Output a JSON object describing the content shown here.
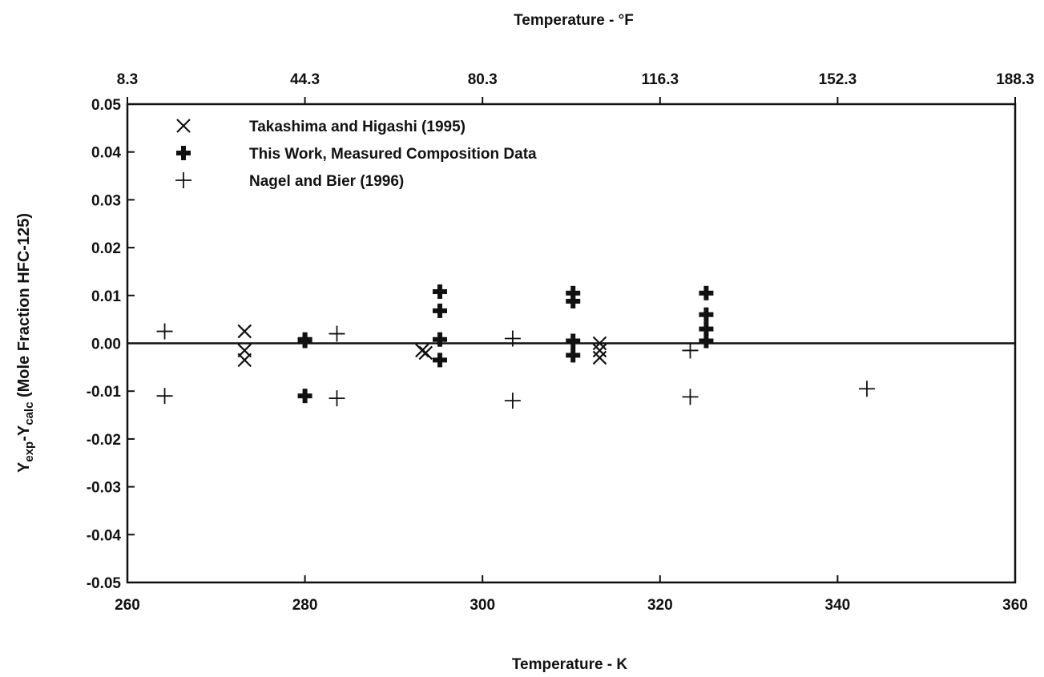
{
  "chart_data": {
    "type": "scatter",
    "title": "",
    "xlabel": "Temperature - K",
    "x2label": "Temperature - °F",
    "ylabel": {
      "prefix1": "Y",
      "sub1": "exp",
      "mid": "-Y",
      "sub2": "calc",
      "suffix": " (Mole Fraction HFC-125)"
    },
    "xlim": [
      260,
      360
    ],
    "ylim": [
      -0.05,
      0.05
    ],
    "xticks": [
      "260",
      "280",
      "300",
      "320",
      "340",
      "360"
    ],
    "yticks": [
      "0.05",
      "0.04",
      "0.03",
      "0.02",
      "0.01",
      "0.00",
      "-0.01",
      "-0.02",
      "-0.03",
      "-0.04",
      "-0.05"
    ],
    "x2ticks": [
      "8.3",
      "44.3",
      "80.3",
      "116.3",
      "152.3",
      "188.3"
    ],
    "zero_line": true,
    "grid": false,
    "legend_position": "top-left",
    "series": [
      {
        "name": "Takashima and Higashi (1995)",
        "marker": "x",
        "points": [
          [
            273.2,
            0.0025
          ],
          [
            273.2,
            -0.0015
          ],
          [
            273.2,
            -0.0035
          ],
          [
            293.2,
            -0.0015
          ],
          [
            293.6,
            -0.002
          ],
          [
            313.2,
            0.0
          ],
          [
            313.2,
            -0.0015
          ],
          [
            313.2,
            -0.003
          ]
        ]
      },
      {
        "name": "This Work, Measured Composition Data",
        "marker": "bold-plus",
        "points": [
          [
            280.0,
            0.0008
          ],
          [
            280.0,
            0.0005
          ],
          [
            280.0,
            -0.011
          ],
          [
            295.2,
            0.0108
          ],
          [
            295.2,
            0.0068
          ],
          [
            295.2,
            0.0008
          ],
          [
            295.2,
            -0.0035
          ],
          [
            310.2,
            0.0105
          ],
          [
            310.2,
            0.0088
          ],
          [
            310.2,
            0.0005
          ],
          [
            310.2,
            -0.0025
          ],
          [
            325.2,
            0.0105
          ],
          [
            325.2,
            0.006
          ],
          [
            325.2,
            0.003
          ],
          [
            325.2,
            0.0005
          ]
        ]
      },
      {
        "name": "Nagel and Bier (1996)",
        "marker": "plus",
        "points": [
          [
            264.2,
            0.0025
          ],
          [
            264.2,
            -0.011
          ],
          [
            283.6,
            0.002
          ],
          [
            283.6,
            -0.0115
          ],
          [
            303.4,
            0.001
          ],
          [
            303.4,
            -0.012
          ],
          [
            323.4,
            -0.0015
          ],
          [
            323.4,
            -0.0112
          ],
          [
            343.3,
            -0.0095
          ]
        ]
      }
    ]
  }
}
